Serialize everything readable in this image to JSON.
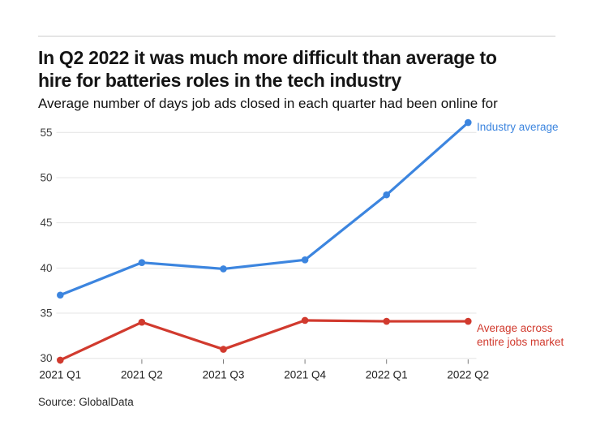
{
  "chart_data": {
    "type": "line",
    "title": "In Q2 2022 it was much more difficult than average to hire for batteries roles in the tech industry",
    "title_lines": [
      "In Q2 2022 it was much more difficult than average to",
      "hire for batteries roles in the tech industry"
    ],
    "subtitle": "Average number of days job ads closed in each quarter had been online for",
    "categories": [
      "2021 Q1",
      "2021 Q2",
      "2021 Q3",
      "2021 Q4",
      "2022 Q1",
      "2022 Q2"
    ],
    "series": [
      {
        "name": "Industry average",
        "label_lines": [
          "Industry average"
        ],
        "color": "#3C85DF",
        "values": [
          37.0,
          40.6,
          39.9,
          40.9,
          48.1,
          56.1
        ]
      },
      {
        "name": "Average across entire jobs market",
        "label_lines": [
          "Average across",
          "entire jobs market"
        ],
        "color": "#D13A2E",
        "values": [
          29.8,
          34.0,
          31.0,
          34.2,
          34.1,
          34.1
        ]
      }
    ],
    "yticks": [
      30,
      35,
      40,
      45,
      50,
      55
    ],
    "ylim": [
      29.5,
      57
    ],
    "xlabel": "",
    "ylabel": "",
    "grid": "horizontal",
    "legend_position": "end-of-line-labels",
    "colors": {
      "grid": "#E4E4E4",
      "tick": "#7D7D7D",
      "axis_x": "#1F1F1F",
      "axis_y": "#3C3C3C"
    },
    "source": "Source: GlobalData"
  }
}
